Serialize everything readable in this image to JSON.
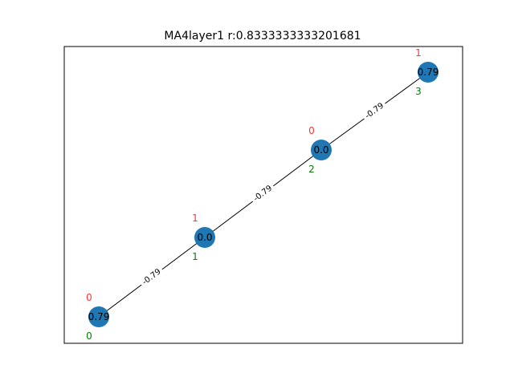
{
  "title": "MA4layer1 r:0.8333333333201681",
  "colors": {
    "node_fill": "#1f77b4",
    "edge": "#000000",
    "top_label": "#ff3333",
    "bottom_label": "#008000",
    "frame": "#000000",
    "background": "#ffffff"
  },
  "nodes": [
    {
      "value": "0.79",
      "top_label": "0",
      "bottom_label": "0"
    },
    {
      "value": "0.0",
      "top_label": "1",
      "bottom_label": "1"
    },
    {
      "value": "0.0",
      "top_label": "0",
      "bottom_label": "2"
    },
    {
      "value": "0.79",
      "top_label": "1",
      "bottom_label": "3"
    }
  ],
  "edges": [
    {
      "from": 0,
      "to": 1,
      "label": "-0.79"
    },
    {
      "from": 1,
      "to": 2,
      "label": "-0.79"
    },
    {
      "from": 2,
      "to": 3,
      "label": "-0.79"
    }
  ]
}
